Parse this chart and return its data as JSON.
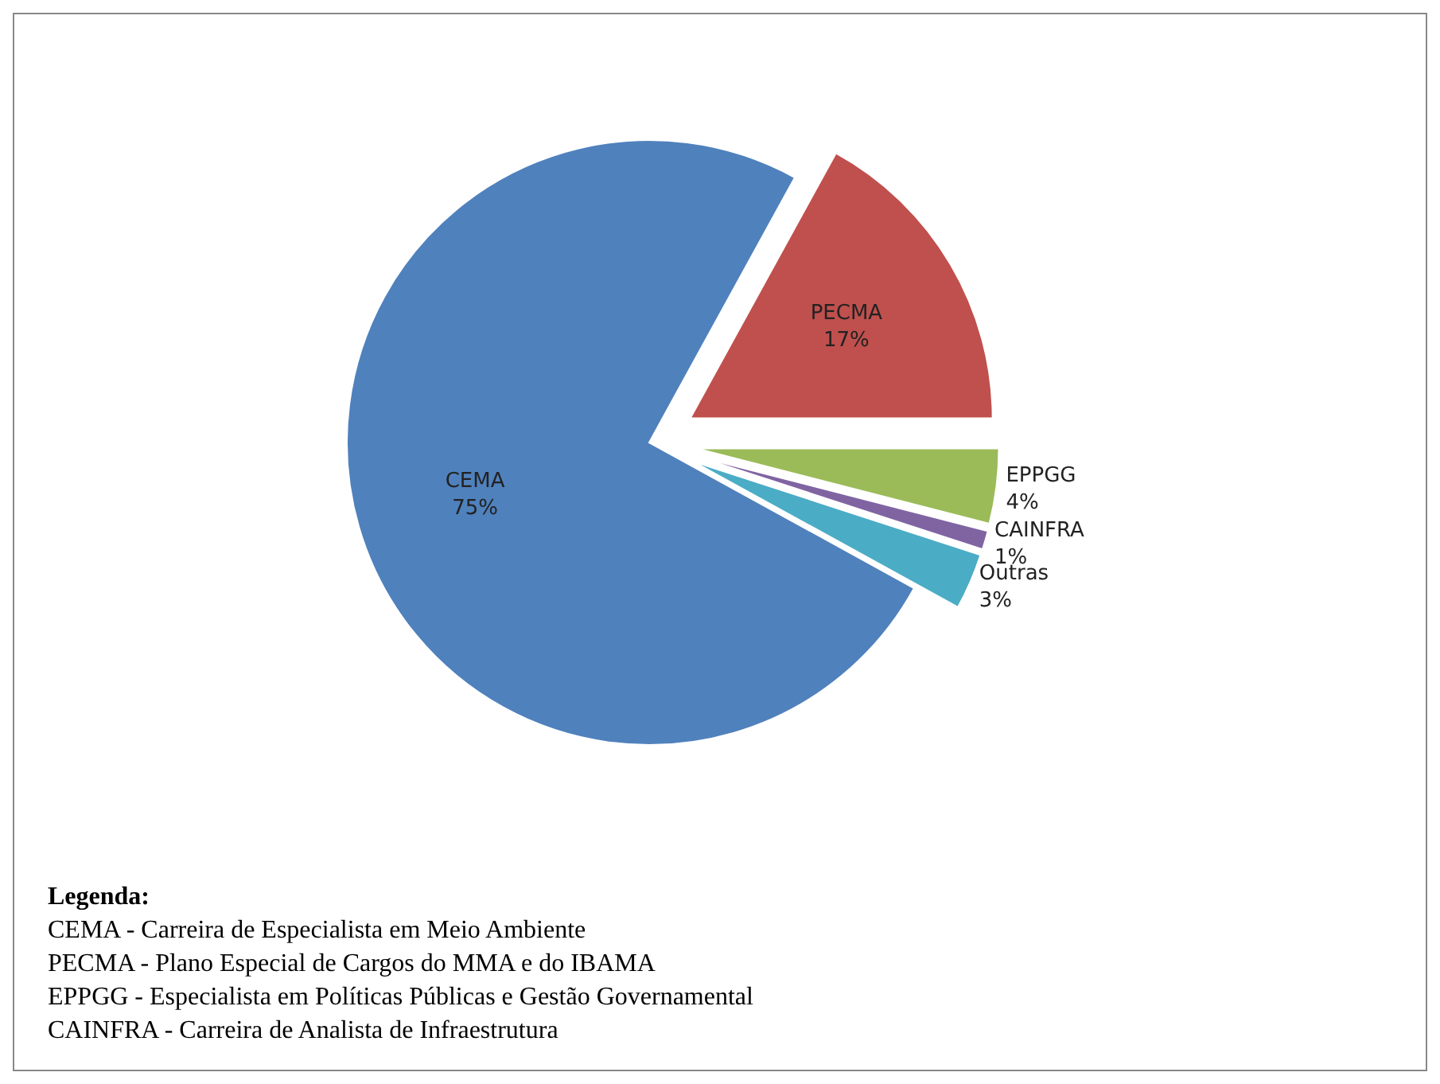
{
  "chart_data": {
    "type": "pie",
    "categories": [
      "CEMA",
      "PECMA",
      "EPPGG",
      "CAINFRA",
      "Outras"
    ],
    "values": [
      75,
      17,
      4,
      1,
      3
    ],
    "value_labels": [
      "75%",
      "17%",
      "4%",
      "1%",
      "3%"
    ],
    "colors": [
      "#4f81bd",
      "#c0504d",
      "#9bbb59",
      "#8064a2",
      "#4bacc6"
    ],
    "annotations": [
      "Legenda:",
      "CEMA - Carreira de Especialista em Meio Ambiente",
      "PECMA - Plano Especial de Cargos do MMA e do IBAMA",
      "EPPGG - Especialista em Políticas Públicas e Gestão Governamental",
      "CAINFRA - Carreira de Analista de Infraestrutura"
    ]
  }
}
